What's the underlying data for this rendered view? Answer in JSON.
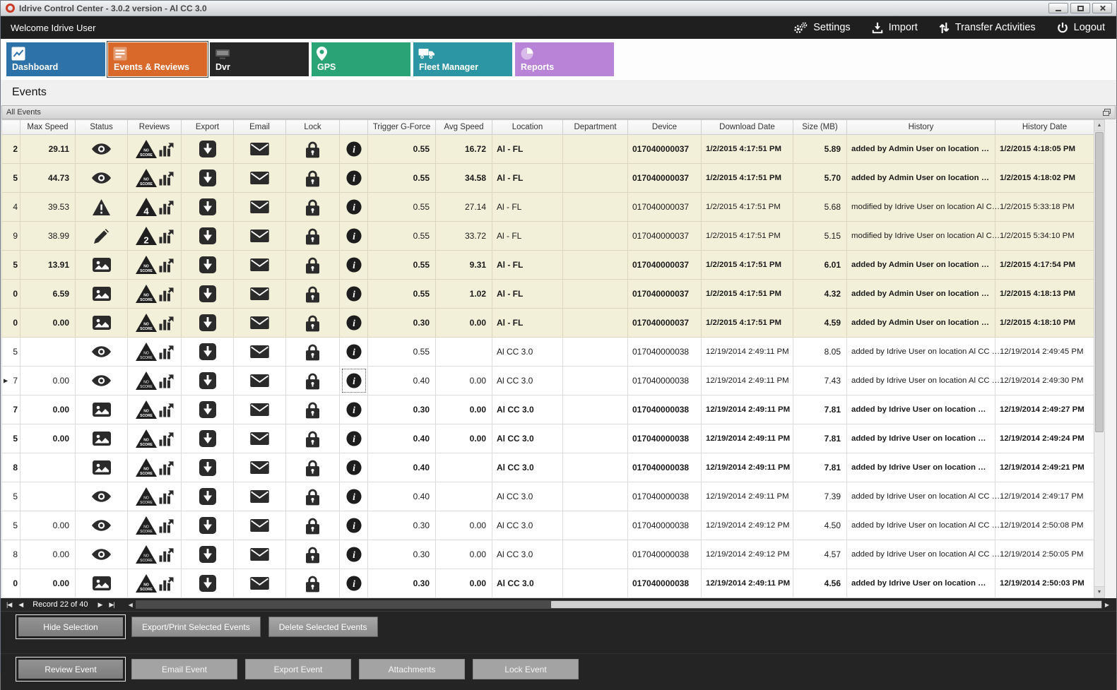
{
  "window": {
    "title": "Idrive Control Center - 3.0.2 version - Al CC 3.0"
  },
  "topbar": {
    "welcome": "Welcome Idrive User",
    "actions": [
      {
        "id": "settings",
        "label": "Settings",
        "icon": "gears-icon"
      },
      {
        "id": "import",
        "label": "Import",
        "icon": "import-icon"
      },
      {
        "id": "transfer-activities",
        "label": "Transfer Activities",
        "icon": "transfer-icon"
      },
      {
        "id": "logout",
        "label": "Logout",
        "icon": "power-icon"
      }
    ]
  },
  "tabs": [
    {
      "id": "dashboard",
      "label": "Dashboard",
      "color": "#2d72a9",
      "icon": "line-chart-icon",
      "active": false
    },
    {
      "id": "events-reviews",
      "label": "Events & Reviews",
      "color": "#d8692a",
      "icon": "events-icon",
      "active": true
    },
    {
      "id": "dvr",
      "label": "Dvr",
      "color": "#262626",
      "icon": "dvr-icon",
      "active": false
    },
    {
      "id": "gps",
      "label": "GPS",
      "color": "#2aa376",
      "icon": "map-pin-icon",
      "active": false
    },
    {
      "id": "fleet-manager",
      "label": "Fleet Manager",
      "color": "#2d96a4",
      "icon": "truck-icon",
      "active": false
    },
    {
      "id": "reports",
      "label": "Reports",
      "color": "#b983d8",
      "icon": "pie-chart-icon",
      "active": false
    }
  ],
  "page": {
    "title": "Events"
  },
  "panel": {
    "title": "All Events"
  },
  "table": {
    "columns": [
      "",
      "Max Speed",
      "Status",
      "Reviews",
      "Export",
      "Email",
      "Lock",
      "",
      "Trigger G-Force",
      "Avg Speed",
      "Location",
      "Department",
      "Device",
      "Download Date",
      "Size (MB)",
      "History",
      "History Date"
    ],
    "rows": [
      {
        "id_fragment": "2",
        "max_speed": "29.11",
        "status_icon": "eye-icon",
        "review_score": "NO SCORE",
        "trigger_g_force": "0.55",
        "avg_speed": "16.72",
        "location": "Al - FL",
        "department": "",
        "device": "017040000037",
        "download_date": "1/2/2015 4:17:51 PM",
        "size_mb": "5.89",
        "history": "added by Admin User on location …",
        "history_date": "1/2/2015 4:18:05 PM",
        "bold": true,
        "highlighted": true,
        "selected": false
      },
      {
        "id_fragment": "5",
        "max_speed": "44.73",
        "status_icon": "eye-icon",
        "review_score": "NO SCORE",
        "trigger_g_force": "0.55",
        "avg_speed": "34.58",
        "location": "Al - FL",
        "department": "",
        "device": "017040000037",
        "download_date": "1/2/2015 4:17:51 PM",
        "size_mb": "5.70",
        "history": "added by Admin User on location …",
        "history_date": "1/2/2015 4:18:02 PM",
        "bold": true,
        "highlighted": true,
        "selected": false
      },
      {
        "id_fragment": "4",
        "max_speed": "39.53",
        "status_icon": "warning-icon",
        "review_score": "4",
        "trigger_g_force": "0.55",
        "avg_speed": "27.14",
        "location": "Al - FL",
        "department": "",
        "device": "017040000037",
        "download_date": "1/2/2015 4:17:51 PM",
        "size_mb": "5.68",
        "history": "modified by Idrive User on location Al C…",
        "history_date": "1/2/2015 5:33:18 PM",
        "bold": false,
        "highlighted": true,
        "selected": false
      },
      {
        "id_fragment": "9",
        "max_speed": "38.99",
        "status_icon": "pencil-icon",
        "review_score": "2",
        "trigger_g_force": "0.55",
        "avg_speed": "33.72",
        "location": "Al - FL",
        "department": "",
        "device": "017040000037",
        "download_date": "1/2/2015 4:17:51 PM",
        "size_mb": "5.15",
        "history": "modified by Idrive User on location Al C…",
        "history_date": "1/2/2015 5:34:10 PM",
        "bold": false,
        "highlighted": true,
        "selected": false
      },
      {
        "id_fragment": "5",
        "max_speed": "13.91",
        "status_icon": "image-icon",
        "review_score": "NO SCORE",
        "trigger_g_force": "0.55",
        "avg_speed": "9.31",
        "location": "Al - FL",
        "department": "",
        "device": "017040000037",
        "download_date": "1/2/2015 4:17:51 PM",
        "size_mb": "6.01",
        "history": "added by Admin User on location …",
        "history_date": "1/2/2015 4:17:54 PM",
        "bold": true,
        "highlighted": true,
        "selected": false
      },
      {
        "id_fragment": "0",
        "max_speed": "6.59",
        "status_icon": "image-icon",
        "review_score": "NO SCORE",
        "trigger_g_force": "0.55",
        "avg_speed": "1.02",
        "location": "Al - FL",
        "department": "",
        "device": "017040000037",
        "download_date": "1/2/2015 4:17:51 PM",
        "size_mb": "4.32",
        "history": "added by Admin User on location …",
        "history_date": "1/2/2015 4:18:13 PM",
        "bold": true,
        "highlighted": true,
        "selected": false
      },
      {
        "id_fragment": "0",
        "max_speed": "0.00",
        "status_icon": "image-icon",
        "review_score": "NO SCORE",
        "trigger_g_force": "0.30",
        "avg_speed": "0.00",
        "location": "Al - FL",
        "department": "",
        "device": "017040000037",
        "download_date": "1/2/2015 4:17:51 PM",
        "size_mb": "4.59",
        "history": "added by Admin User on location …",
        "history_date": "1/2/2015 4:18:10 PM",
        "bold": true,
        "highlighted": true,
        "selected": false
      },
      {
        "id_fragment": "5",
        "max_speed": "",
        "status_icon": "eye-icon",
        "review_score": "NO SCORE",
        "trigger_g_force": "0.55",
        "avg_speed": "",
        "location": "Al CC 3.0",
        "department": "",
        "device": "017040000038",
        "download_date": "12/19/2014 2:49:11 PM",
        "size_mb": "8.05",
        "history": "added by Idrive User on location Al CC …",
        "history_date": "12/19/2014 2:49:45 PM",
        "bold": false,
        "highlighted": false,
        "selected": false
      },
      {
        "id_fragment": "7",
        "max_speed": "0.00",
        "status_icon": "eye-icon",
        "review_score": "NO SCORE",
        "trigger_g_force": "0.40",
        "avg_speed": "0.00",
        "location": "Al CC 3.0",
        "department": "",
        "device": "017040000038",
        "download_date": "12/19/2014 2:49:11 PM",
        "size_mb": "7.43",
        "history": "added by Idrive User on location Al CC …",
        "history_date": "12/19/2014 2:49:30 PM",
        "bold": false,
        "highlighted": false,
        "selected": true
      },
      {
        "id_fragment": "7",
        "max_speed": "0.00",
        "status_icon": "image-icon",
        "review_score": "NO SCORE",
        "trigger_g_force": "0.30",
        "avg_speed": "0.00",
        "location": "Al CC 3.0",
        "department": "",
        "device": "017040000038",
        "download_date": "12/19/2014 2:49:11 PM",
        "size_mb": "7.81",
        "history": "added by Idrive User on location …",
        "history_date": "12/19/2014 2:49:27 PM",
        "bold": true,
        "highlighted": false,
        "selected": false
      },
      {
        "id_fragment": "5",
        "max_speed": "0.00",
        "status_icon": "image-icon",
        "review_score": "NO SCORE",
        "trigger_g_force": "0.40",
        "avg_speed": "0.00",
        "location": "Al CC 3.0",
        "department": "",
        "device": "017040000038",
        "download_date": "12/19/2014 2:49:11 PM",
        "size_mb": "7.81",
        "history": "added by Idrive User on location …",
        "history_date": "12/19/2014 2:49:24 PM",
        "bold": true,
        "highlighted": false,
        "selected": false
      },
      {
        "id_fragment": "8",
        "max_speed": "",
        "status_icon": "image-icon",
        "review_score": "NO SCORE",
        "trigger_g_force": "0.40",
        "avg_speed": "",
        "location": "Al CC 3.0",
        "department": "",
        "device": "017040000038",
        "download_date": "12/19/2014 2:49:11 PM",
        "size_mb": "7.81",
        "history": "added by Idrive User on location …",
        "history_date": "12/19/2014 2:49:21 PM",
        "bold": true,
        "highlighted": false,
        "selected": false
      },
      {
        "id_fragment": "5",
        "max_speed": "",
        "status_icon": "eye-icon",
        "review_score": "NO SCORE",
        "trigger_g_force": "0.40",
        "avg_speed": "",
        "location": "Al CC 3.0",
        "department": "",
        "device": "017040000038",
        "download_date": "12/19/2014 2:49:11 PM",
        "size_mb": "7.39",
        "history": "added by Idrive User on location Al CC …",
        "history_date": "12/19/2014 2:49:17 PM",
        "bold": false,
        "highlighted": false,
        "selected": false
      },
      {
        "id_fragment": "5",
        "max_speed": "0.00",
        "status_icon": "eye-icon",
        "review_score": "NO SCORE",
        "trigger_g_force": "0.30",
        "avg_speed": "0.00",
        "location": "Al CC 3.0",
        "department": "",
        "device": "017040000038",
        "download_date": "12/19/2014 2:49:12 PM",
        "size_mb": "4.50",
        "history": "added by Idrive User on location Al CC …",
        "history_date": "12/19/2014 2:50:08 PM",
        "bold": false,
        "highlighted": false,
        "selected": false
      },
      {
        "id_fragment": "8",
        "max_speed": "0.00",
        "status_icon": "eye-icon",
        "review_score": "NO SCORE",
        "trigger_g_force": "0.30",
        "avg_speed": "0.00",
        "location": "Al CC 3.0",
        "department": "",
        "device": "017040000038",
        "download_date": "12/19/2014 2:49:12 PM",
        "size_mb": "4.57",
        "history": "added by Idrive User on location Al CC …",
        "history_date": "12/19/2014 2:50:05 PM",
        "bold": false,
        "highlighted": false,
        "selected": false
      },
      {
        "id_fragment": "0",
        "max_speed": "0.00",
        "status_icon": "image-icon",
        "review_score": "NO SCORE",
        "trigger_g_force": "0.30",
        "avg_speed": "0.00",
        "location": "Al CC 3.0",
        "department": "",
        "device": "017040000038",
        "download_date": "12/19/2014 2:49:11 PM",
        "size_mb": "4.56",
        "history": "added by Idrive User on location …",
        "history_date": "12/19/2014 2:50:03 PM",
        "bold": true,
        "highlighted": false,
        "selected": false
      }
    ]
  },
  "nav": {
    "record_label": "Record 22 of 40"
  },
  "actions_panel": {
    "selection_buttons": [
      {
        "label": "Hide Selection",
        "focused": true
      },
      {
        "label": "Export/Print Selected Events",
        "focused": false
      },
      {
        "label": "Delete Selected Events",
        "focused": false
      }
    ],
    "event_buttons": [
      {
        "label": "Review Event",
        "focused": true
      },
      {
        "label": "Email Event",
        "focused": false
      },
      {
        "label": "Export Event",
        "focused": false
      },
      {
        "label": "Attachments",
        "focused": false
      },
      {
        "label": "Lock Event",
        "focused": false
      }
    ]
  }
}
